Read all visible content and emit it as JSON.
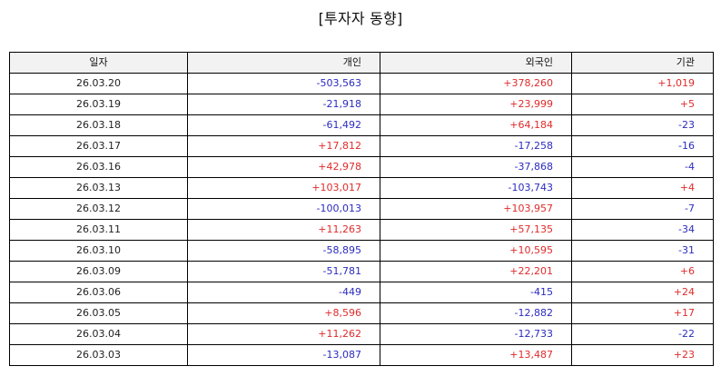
{
  "title": "[투자자 동향]",
  "colors": {
    "positive": "#e02b2b",
    "negative": "#2b2bc0",
    "header_bg": "#f2f2f2"
  },
  "table": {
    "headers": [
      "일자",
      "개인",
      "외국인",
      "기관"
    ],
    "rows": [
      [
        "26.03.20",
        "-503,563",
        "+378,260",
        "+1,019"
      ],
      [
        "26.03.19",
        "-21,918",
        "+23,999",
        "+5"
      ],
      [
        "26.03.18",
        "-61,492",
        "+64,184",
        "-23"
      ],
      [
        "26.03.17",
        "+17,812",
        "-17,258",
        "-16"
      ],
      [
        "26.03.16",
        "+42,978",
        "-37,868",
        "-4"
      ],
      [
        "26.03.13",
        "+103,017",
        "-103,743",
        "+4"
      ],
      [
        "26.03.12",
        "-100,013",
        "+103,957",
        "-7"
      ],
      [
        "26.03.11",
        "+11,263",
        "+57,135",
        "-34"
      ],
      [
        "26.03.10",
        "-58,895",
        "+10,595",
        "-31"
      ],
      [
        "26.03.09",
        "-51,781",
        "+22,201",
        "+6"
      ],
      [
        "26.03.06",
        "-449",
        "-415",
        "+24"
      ],
      [
        "26.03.05",
        "+8,596",
        "-12,882",
        "+17"
      ],
      [
        "26.03.04",
        "+11,262",
        "-12,733",
        "-22"
      ],
      [
        "26.03.03",
        "-13,087",
        "+13,487",
        "+23"
      ]
    ]
  }
}
